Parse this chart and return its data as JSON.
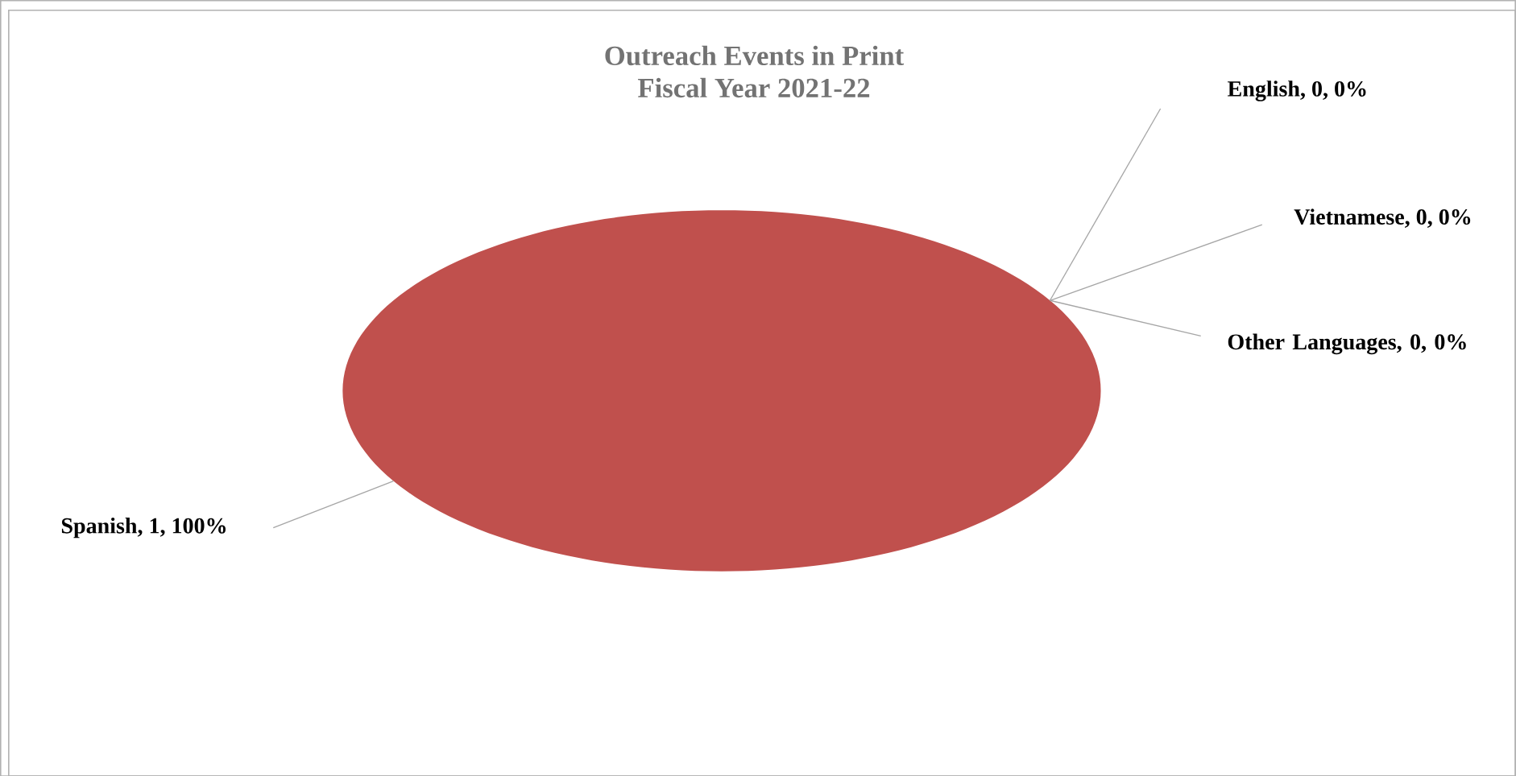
{
  "chart_data": {
    "type": "pie",
    "title": "Outreach Events in Print",
    "subtitle": "Fiscal Year 2021-22",
    "categories": [
      "English",
      "Spanish",
      "Vietnamese",
      "Other Languages"
    ],
    "values": [
      0,
      1,
      0,
      0
    ],
    "colors": [
      "#4f81bd",
      "#c0504d",
      "#9bbb59",
      "#2c2a4a"
    ],
    "value_labels": [
      ", 0, 0%",
      ", 1, 100%",
      ", 0, 0%",
      ", 0, 0%"
    ],
    "legend": false
  }
}
